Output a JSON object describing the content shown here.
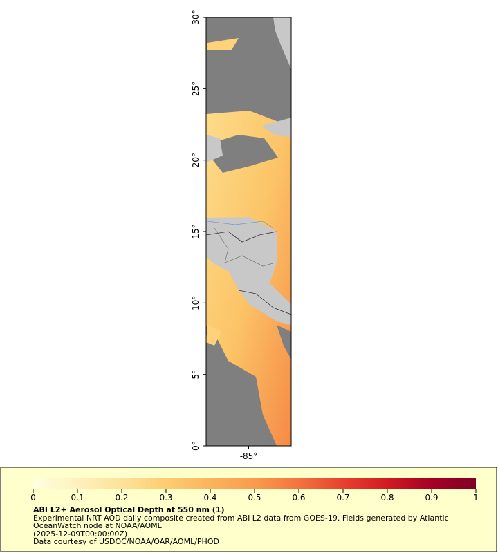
{
  "chart_data": {
    "type": "map",
    "ylim": [
      0,
      30
    ],
    "yticks": [
      {
        "value": 0,
        "label": "0°"
      },
      {
        "value": 5,
        "label": "5°"
      },
      {
        "value": 10,
        "label": "10°"
      },
      {
        "value": 15,
        "label": "15°"
      },
      {
        "value": 20,
        "label": "20°"
      },
      {
        "value": 25,
        "label": "25°"
      },
      {
        "value": 30,
        "label": "30°"
      }
    ],
    "xlim": [
      -88,
      -82
    ],
    "xticks": [
      {
        "value": -85,
        "label": "-85°"
      }
    ]
  },
  "colorbar": {
    "range": [
      0,
      1
    ],
    "ticks": [
      0,
      0.1,
      0.2,
      0.3,
      0.4,
      0.5,
      0.6,
      0.7,
      0.8,
      0.9,
      1
    ],
    "colors": [
      "#ffffe0",
      "#fff0bd",
      "#fee29a",
      "#fdcd70",
      "#fbb45e",
      "#f99b4e",
      "#f3733f",
      "#e8402e",
      "#d11a22",
      "#a50026",
      "#800026"
    ]
  },
  "legend": {
    "title": "ABI L2+ Aerosol Optical Depth at 550 nm (1)",
    "lines": [
      "Experimental NRT AOD daily composite created from ABI L2 data from GOES-19. Fields generated by Atlantic OceanWatch node at NOAA/AOML",
      "(2025-12-09T00:00:00Z)",
      "Data courtesy of USDOC/NOAA/OAR/AOML/PHOD"
    ]
  }
}
